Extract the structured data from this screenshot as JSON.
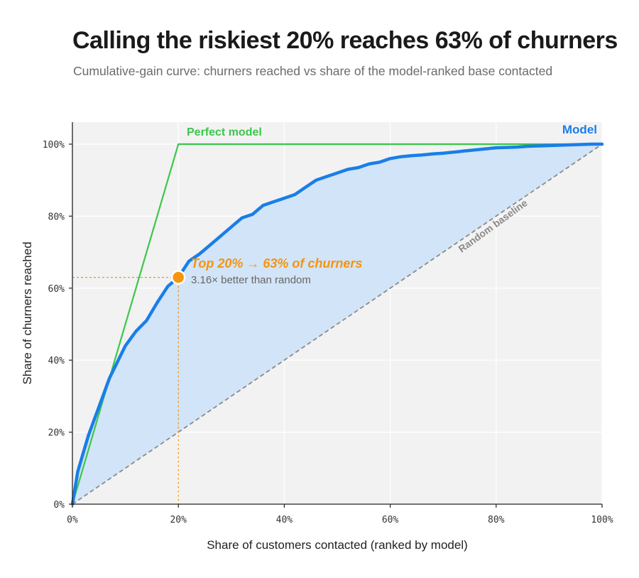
{
  "title": "Calling the riskiest 20% reaches 63% of churners",
  "subtitle": "Cumulative-gain curve: churners reached vs share of the model-ranked base contacted",
  "colors": {
    "model": "#1a7ee8",
    "model_fill": "#d2e4f7",
    "perfect": "#3cc74a",
    "random": "#8a8a8a",
    "highlight": "#f5940f",
    "plot_bg": "#f2f2f2",
    "grid": "#ffffff"
  },
  "chart_data": {
    "type": "line",
    "xlabel": "Share of customers contacted (ranked by model)",
    "ylabel": "Share of churners reached",
    "xlim": [
      0,
      100
    ],
    "ylim": [
      0,
      100
    ],
    "x_ticks": [
      "0%",
      "20%",
      "40%",
      "60%",
      "80%",
      "100%"
    ],
    "y_ticks": [
      "0%",
      "20%",
      "40%",
      "60%",
      "80%",
      "100%"
    ],
    "grid": true,
    "series": [
      {
        "name": "Model",
        "x": [
          0,
          1,
          2,
          3,
          4,
          5,
          6,
          7,
          8,
          9,
          10,
          12,
          14,
          16,
          18,
          20,
          22,
          24,
          26,
          28,
          30,
          32,
          34,
          36,
          38,
          40,
          42,
          44,
          46,
          48,
          50,
          52,
          54,
          56,
          58,
          60,
          62,
          64,
          66,
          68,
          70,
          72,
          74,
          76,
          78,
          80,
          82,
          84,
          86,
          88,
          90,
          92,
          94,
          96,
          98,
          100
        ],
        "y": [
          0,
          9,
          14,
          19,
          23,
          27,
          31,
          35,
          38,
          41,
          44,
          48,
          51,
          56,
          60.5,
          63,
          67.5,
          69.5,
          72,
          74.5,
          77,
          79.5,
          80.5,
          83,
          84,
          85,
          86,
          88,
          90,
          91,
          92,
          93,
          93.5,
          94.5,
          95,
          96,
          96.5,
          96.8,
          97,
          97.3,
          97.5,
          97.8,
          98.1,
          98.4,
          98.7,
          99,
          99.1,
          99.2,
          99.4,
          99.5,
          99.6,
          99.7,
          99.8,
          99.9,
          100,
          100
        ]
      },
      {
        "name": "Perfect model",
        "x": [
          0,
          20,
          100
        ],
        "y": [
          0,
          100,
          100
        ]
      },
      {
        "name": "Random baseline",
        "x": [
          0,
          100
        ],
        "y": [
          0,
          100
        ]
      }
    ],
    "highlight_point": {
      "x": 20,
      "y": 63
    },
    "annotations": {
      "main": "Top 20% → 63% of churners",
      "sub": "3.16× better than random",
      "perfect_label": "Perfect model",
      "model_label": "Model",
      "random_label": "Random baseline"
    }
  }
}
